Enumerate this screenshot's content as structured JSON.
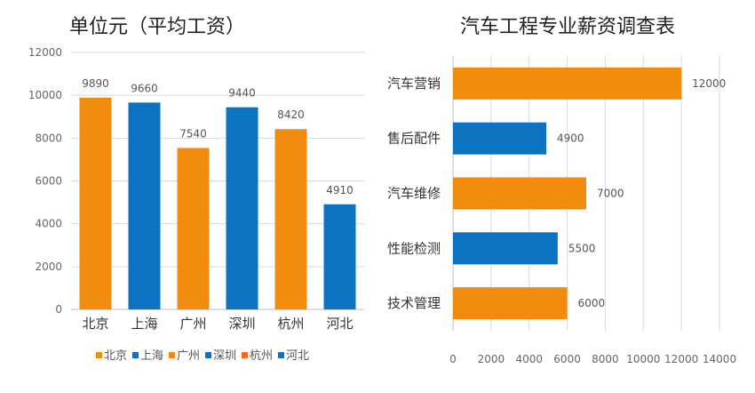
{
  "chart_data": [
    {
      "type": "bar",
      "title": "单位元（平均工资）",
      "categories": [
        "北京",
        "上海",
        "广州",
        "深圳",
        "杭州",
        "河北"
      ],
      "values": [
        9890,
        9660,
        7540,
        9440,
        8420,
        4910
      ],
      "colors": [
        "#F28C0F",
        "#0C73C2",
        "#F28C0F",
        "#0C73C2",
        "#F28C0F",
        "#0C73C2"
      ],
      "ylim": [
        0,
        12000
      ],
      "yticks": [
        0,
        2000,
        4000,
        6000,
        8000,
        10000,
        12000
      ],
      "grid": true,
      "legend": {
        "position": "bottom",
        "entries": [
          "北京",
          "上海",
          "广州",
          "深圳",
          "杭州",
          "河北"
        ],
        "colors": [
          "#F28C0F",
          "#0C73C2",
          "#F28C0F",
          "#0C73C2",
          "#F26B1D",
          "#0C73C2"
        ]
      }
    },
    {
      "type": "bar",
      "orientation": "horizontal",
      "title": "汽车工程专业薪资调查表",
      "categories": [
        "汽车营销",
        "售后配件",
        "汽车维修",
        "性能检测",
        "技术管理"
      ],
      "values": [
        12000,
        4900,
        7000,
        5500,
        6000
      ],
      "colors": [
        "#F28C0F",
        "#0C73C2",
        "#F28C0F",
        "#0C73C2",
        "#F28C0F"
      ],
      "xlim": [
        0,
        14000
      ],
      "xticks": [
        0,
        2000,
        4000,
        6000,
        8000,
        10000,
        12000,
        14000
      ],
      "grid": true
    }
  ]
}
